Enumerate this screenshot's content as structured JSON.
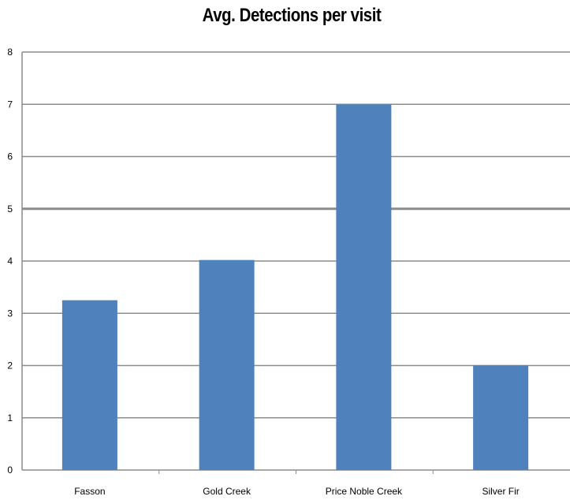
{
  "chart_data": {
    "type": "bar",
    "title": "Avg. Detections per visit",
    "xlabel": "",
    "ylabel": "",
    "categories": [
      "Fasson",
      "Gold Creek",
      "Price Noble Creek",
      "Silver Fir"
    ],
    "values": [
      3.25,
      4.02,
      7.0,
      2.0
    ],
    "ylim": [
      0,
      8
    ],
    "yticks": [
      "0",
      "1",
      "2",
      "3",
      "4",
      "5",
      "6",
      "7",
      "8"
    ],
    "grid": true,
    "legend": "none",
    "bar_color": "#4F81BD",
    "grid_color": "#8C8C8C"
  }
}
